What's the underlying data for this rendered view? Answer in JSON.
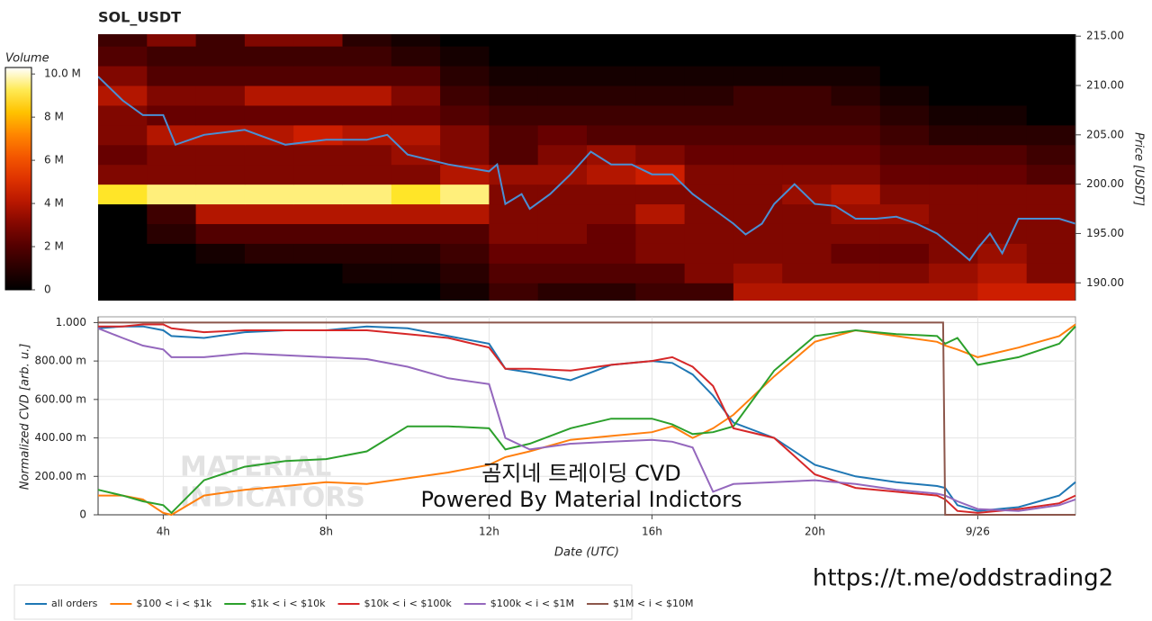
{
  "chart_data": [
    {
      "type": "heatmap",
      "title": "SOL_USDT",
      "ylabel": "Price [USDT]",
      "xlim": [
        2.4,
        26.4
      ],
      "ylim": [
        188.2,
        215.2
      ],
      "yticks": [
        {
          "value": 190,
          "label": "190.00"
        },
        {
          "value": 195,
          "label": "195.00"
        },
        {
          "value": 200,
          "label": "200.00"
        },
        {
          "value": 205,
          "label": "205.00"
        },
        {
          "value": 210,
          "label": "210.00"
        },
        {
          "value": 215,
          "label": "215.00"
        }
      ],
      "cells": {
        "x": [
          3.0,
          4.2,
          5.4,
          6.6,
          7.8,
          9.0,
          10.2,
          11.4,
          12.6,
          13.8,
          15.0,
          16.2,
          17.4,
          18.6,
          19.8,
          21.0,
          22.2,
          23.4,
          24.6,
          25.8
        ],
        "y": [
          189,
          191,
          193,
          195,
          197,
          199,
          201,
          203,
          205,
          207,
          209,
          211,
          213,
          215
        ],
        "z": [
          [
            0,
            0,
            0,
            0,
            0,
            0,
            0,
            0.5,
            1.5,
            1,
            1,
            1.5,
            1.5,
            4,
            4,
            4,
            4,
            4,
            4.5,
            4.5
          ],
          [
            0,
            0,
            0,
            0,
            0,
            0.5,
            0.5,
            1,
            2,
            2,
            2,
            2,
            3,
            3.5,
            3,
            3,
            3,
            3.5,
            4,
            3
          ],
          [
            0,
            0,
            0.5,
            1,
            1,
            1,
            1,
            1.5,
            2.5,
            2.5,
            2.5,
            3,
            3,
            3,
            3,
            2.5,
            2.5,
            3,
            3.5,
            3
          ],
          [
            0,
            1,
            2,
            2,
            2,
            2,
            2,
            2,
            3,
            3,
            2.5,
            3,
            3,
            3,
            3,
            3,
            3,
            3,
            3,
            3
          ],
          [
            0,
            1.5,
            4,
            4,
            4,
            4,
            4,
            4,
            3,
            3,
            3,
            4,
            3,
            3,
            3,
            3.5,
            3.5,
            3,
            3,
            3
          ],
          [
            9,
            9.5,
            9.5,
            9.5,
            9.5,
            9.5,
            9,
            9.5,
            3,
            3,
            3,
            3,
            3,
            3,
            3.5,
            4,
            3,
            3,
            3,
            3
          ],
          [
            3,
            3,
            3,
            3,
            3,
            3,
            3,
            4,
            3.5,
            3.5,
            4,
            4.5,
            3,
            3,
            3,
            3,
            2.5,
            2.5,
            2.5,
            2
          ],
          [
            2.5,
            3,
            3,
            3,
            3,
            3,
            3.5,
            3,
            2,
            3,
            3.5,
            3,
            2.5,
            2.5,
            2.5,
            2.5,
            2,
            2,
            2,
            1.5
          ],
          [
            3,
            4,
            4,
            4,
            4.5,
            4,
            4,
            3,
            2,
            2.5,
            2,
            2,
            2,
            2,
            2,
            2,
            1.5,
            1,
            1,
            1
          ],
          [
            3,
            2.5,
            2.5,
            2.5,
            2.5,
            2.5,
            2.5,
            2,
            1.5,
            1.5,
            1.5,
            1.5,
            1.5,
            1.5,
            1.5,
            1.5,
            1,
            0.5,
            0.5,
            0
          ],
          [
            4,
            3,
            3,
            4,
            4,
            4,
            3,
            1.5,
            1,
            1,
            1,
            1,
            1,
            1.5,
            1.5,
            1,
            0.5,
            0,
            0,
            0
          ],
          [
            3,
            2,
            2,
            2,
            2,
            2,
            2,
            1,
            0.5,
            0.5,
            0.5,
            0.5,
            0.5,
            0.5,
            0.5,
            0.5,
            0,
            0,
            0,
            0
          ],
          [
            2,
            1.5,
            1.5,
            1.5,
            1.5,
            1.5,
            1,
            0.5,
            0,
            0,
            0,
            0,
            0,
            0,
            0,
            0,
            0,
            0,
            0,
            0
          ],
          [
            1.5,
            3,
            1.5,
            3,
            3,
            1,
            0.5,
            0,
            0,
            0,
            0,
            0,
            0,
            0,
            0,
            0,
            0,
            0,
            0,
            0
          ]
        ]
      },
      "colorbar": {
        "label": "Volume",
        "zlim": [
          0,
          10.3
        ],
        "colorscale": "hot",
        "ticks": [
          0,
          {
            "value": 2,
            "label": "2 M"
          },
          {
            "value": 4,
            "label": "4 M"
          },
          {
            "value": 6,
            "label": "6 M"
          },
          {
            "value": 8,
            "label": "8 M"
          },
          {
            "value": 10,
            "label": "10.0 M"
          }
        ]
      },
      "series": [
        {
          "color": "#4a8fd4",
          "x": [
            2.4,
            3,
            3.5,
            4,
            4.3,
            5,
            6,
            7,
            8,
            9,
            9.5,
            10,
            11,
            12,
            12.2,
            12.4,
            12.8,
            13,
            13.5,
            14,
            14.5,
            15,
            15.5,
            16,
            16.5,
            17,
            17.5,
            18,
            18.3,
            18.7,
            19,
            19.5,
            20,
            20.5,
            21,
            21.5,
            22,
            22.5,
            23,
            23.3,
            23.6,
            23.8,
            24,
            24.3,
            24.6,
            25,
            25.5,
            26,
            26.4
          ],
          "values": [
            210.9,
            208.5,
            207,
            207,
            204,
            205,
            205.5,
            204,
            204.5,
            204.5,
            205,
            203,
            202,
            201.3,
            202,
            198,
            199,
            197.5,
            199,
            201,
            203.3,
            202,
            202,
            201,
            201,
            199,
            197.5,
            196,
            194.9,
            196,
            198,
            200,
            198,
            197.8,
            196.5,
            196.5,
            196.7,
            196,
            195,
            194,
            193,
            192.3,
            193.5,
            195,
            193,
            196.5,
            196.5,
            196.5,
            196
          ]
        }
      ]
    },
    {
      "type": "line",
      "xlabel": "Date (UTC)",
      "ylabel": "Normalized CVD [arb. u.]",
      "grid": true,
      "legend": "bottom-left",
      "xlim": [
        2.4,
        26.4
      ],
      "ylim": [
        0,
        1.03
      ],
      "xticks": [
        {
          "value": 4,
          "label": "4h"
        },
        {
          "value": 8,
          "label": "8h"
        },
        {
          "value": 12,
          "label": "12h"
        },
        {
          "value": 16,
          "label": "16h"
        },
        {
          "value": 20,
          "label": "20h"
        },
        {
          "value": 24,
          "label": "9/26"
        }
      ],
      "yticks": [
        0,
        {
          "value": 0.2,
          "label": "200.00 m"
        },
        {
          "value": 0.4,
          "label": "400.00 m"
        },
        {
          "value": 0.6,
          "label": "600.00 m"
        },
        {
          "value": 0.8,
          "label": "800.00 m"
        },
        {
          "value": 1,
          "label": "1.000"
        }
      ],
      "x": [
        2.4,
        3,
        3.5,
        4,
        4.2,
        5,
        6,
        7,
        8,
        9,
        10,
        11,
        12,
        12.4,
        13,
        14,
        15,
        16,
        16.5,
        17,
        17.5,
        18,
        19,
        20,
        21,
        22,
        23,
        23.2,
        23.5,
        24,
        25,
        26,
        26.4
      ],
      "series": [
        {
          "name": "all orders",
          "color": "#1f77b4",
          "values": [
            0.97,
            0.98,
            0.98,
            0.96,
            0.93,
            0.92,
            0.95,
            0.96,
            0.96,
            0.98,
            0.97,
            0.93,
            0.89,
            0.76,
            0.74,
            0.7,
            0.78,
            0.8,
            0.79,
            0.73,
            0.62,
            0.48,
            0.4,
            0.26,
            0.2,
            0.17,
            0.15,
            0.14,
            0.05,
            0.02,
            0.04,
            0.1,
            0.17
          ]
        },
        {
          "name": "$100 < i < $1k",
          "color": "#ff7f0e",
          "values": [
            0.1,
            0.1,
            0.08,
            0.01,
            0.0,
            0.1,
            0.13,
            0.15,
            0.17,
            0.16,
            0.19,
            0.22,
            0.26,
            0.3,
            0.33,
            0.39,
            0.41,
            0.43,
            0.46,
            0.4,
            0.45,
            0.52,
            0.72,
            0.9,
            0.96,
            0.93,
            0.9,
            0.88,
            0.86,
            0.82,
            0.87,
            0.93,
            0.99
          ]
        },
        {
          "name": "$1k < i < $10k",
          "color": "#2ca02c",
          "values": [
            0.13,
            0.1,
            0.07,
            0.05,
            0.01,
            0.18,
            0.25,
            0.28,
            0.29,
            0.33,
            0.46,
            0.46,
            0.45,
            0.34,
            0.37,
            0.45,
            0.5,
            0.5,
            0.47,
            0.42,
            0.43,
            0.46,
            0.75,
            0.93,
            0.96,
            0.94,
            0.93,
            0.89,
            0.92,
            0.78,
            0.82,
            0.89,
            0.98
          ]
        },
        {
          "name": "$10k < i < $100k",
          "color": "#d62728",
          "values": [
            0.98,
            0.98,
            0.99,
            0.99,
            0.97,
            0.95,
            0.96,
            0.96,
            0.96,
            0.96,
            0.94,
            0.92,
            0.87,
            0.76,
            0.76,
            0.75,
            0.78,
            0.8,
            0.82,
            0.77,
            0.67,
            0.45,
            0.4,
            0.21,
            0.14,
            0.12,
            0.1,
            0.08,
            0.02,
            0.01,
            0.03,
            0.06,
            0.1
          ]
        },
        {
          "name": "$100k < i < $1M",
          "color": "#9467bd",
          "values": [
            0.97,
            0.92,
            0.88,
            0.86,
            0.82,
            0.82,
            0.84,
            0.83,
            0.82,
            0.81,
            0.77,
            0.71,
            0.68,
            0.4,
            0.34,
            0.37,
            0.38,
            0.39,
            0.38,
            0.35,
            0.12,
            0.16,
            0.17,
            0.18,
            0.16,
            0.13,
            0.11,
            0.1,
            0.07,
            0.03,
            0.02,
            0.05,
            0.08
          ]
        },
        {
          "name": "$1M < i < $10M",
          "color": "#8c564b",
          "x": [
            2.4,
            23.15,
            23.2,
            26.4
          ],
          "values": [
            1.0,
            1.0,
            0.0,
            0.0
          ]
        }
      ],
      "watermark": [
        "MATERIAL",
        "INDICATORS"
      ],
      "overlay_text": [
        "곰지네 트레이딩 CVD",
        "Powered By Material Indictors"
      ],
      "link": "https://t.me/oddstrading2"
    }
  ]
}
